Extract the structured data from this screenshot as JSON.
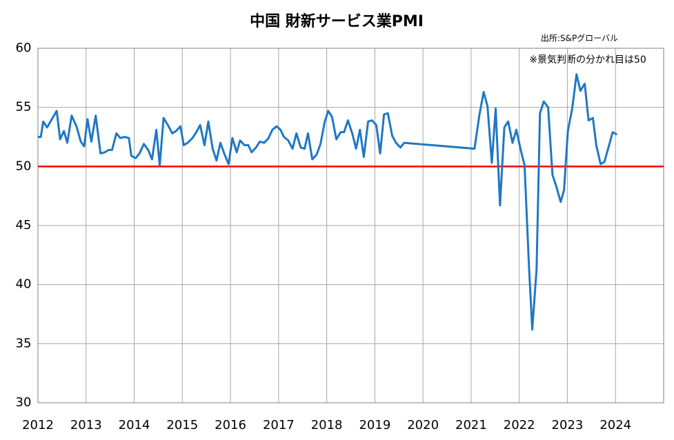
{
  "chart_data": {
    "type": "line",
    "title": "中国  財新サービス業PMI",
    "annotations": [
      "出所:S&Pグローバル",
      "※景気判断の分かれ目は50"
    ],
    "threshold": 50,
    "threshold_color": "#ff0000",
    "xlim": [
      2012,
      2025
    ],
    "xticks": [
      2012,
      2013,
      2014,
      2015,
      2016,
      2017,
      2018,
      2019,
      2020,
      2021,
      2022,
      2023,
      2024
    ],
    "ylim": [
      30,
      60
    ],
    "yticks": [
      30,
      35,
      40,
      45,
      50,
      55,
      60
    ],
    "grid": true,
    "x": [
      2012.0,
      2012.06,
      2012.11,
      2012.19,
      2012.29,
      2012.39,
      2012.46,
      2012.54,
      2012.61,
      2012.7,
      2012.8,
      2012.89,
      2012.96,
      2013.03,
      2013.11,
      2013.2,
      2013.3,
      2013.39,
      2013.47,
      2013.54,
      2013.63,
      2013.71,
      2013.8,
      2013.89,
      2013.94,
      2014.03,
      2014.11,
      2014.2,
      2014.29,
      2014.37,
      2014.46,
      2014.53,
      2014.61,
      2014.7,
      2014.79,
      2014.87,
      2014.96,
      2015.03,
      2015.11,
      2015.21,
      2015.29,
      2015.37,
      2015.46,
      2015.54,
      2015.63,
      2015.71,
      2015.79,
      2015.87,
      2015.96,
      2016.04,
      2016.13,
      2016.2,
      2016.29,
      2016.37,
      2016.44,
      2016.53,
      2016.61,
      2016.7,
      2016.79,
      2016.87,
      2016.96,
      2017.04,
      2017.11,
      2017.2,
      2017.29,
      2017.37,
      2017.46,
      2017.54,
      2017.61,
      2017.7,
      2017.79,
      2017.87,
      2017.96,
      2018.03,
      2018.11,
      2018.2,
      2018.29,
      2018.36,
      2018.44,
      2018.53,
      2018.61,
      2018.69,
      2018.77,
      2018.86,
      2018.94,
      2019.03,
      2019.11,
      2019.19,
      2019.27,
      2019.36,
      2019.44,
      2019.53,
      2019.61,
      2021.07,
      2021.17,
      2021.26,
      2021.34,
      2021.43,
      2021.51,
      2021.6,
      2021.69,
      2021.77,
      2021.86,
      2021.94,
      2022.03,
      2022.11,
      2022.2,
      2022.27,
      2022.36,
      2022.43,
      2022.51,
      2022.6,
      2022.69,
      2022.77,
      2022.86,
      2022.93,
      2023.01,
      2023.1,
      2023.19,
      2023.27,
      2023.36,
      2023.44,
      2023.53,
      2023.6,
      2023.69,
      2023.77,
      2023.86,
      2023.94,
      2024.03
    ],
    "series": [
      {
        "name": "財新サービス業PMI",
        "color": "#1f77c4",
        "values": [
          52.5,
          52.5,
          53.8,
          53.3,
          54.0,
          54.7,
          52.3,
          53.0,
          52.0,
          54.3,
          53.4,
          52.1,
          51.7,
          54.0,
          52.1,
          54.3,
          51.1,
          51.2,
          51.4,
          51.4,
          52.8,
          52.4,
          52.5,
          52.4,
          50.9,
          50.7,
          51.1,
          51.9,
          51.4,
          50.6,
          53.1,
          50.1,
          54.1,
          53.5,
          52.8,
          53.0,
          53.4,
          51.8,
          52.0,
          52.4,
          52.9,
          53.5,
          51.8,
          53.8,
          51.5,
          50.5,
          52.0,
          51.1,
          50.2,
          52.4,
          51.2,
          52.2,
          51.8,
          51.8,
          51.2,
          51.6,
          52.1,
          52.0,
          52.4,
          53.1,
          53.4,
          53.1,
          52.5,
          52.2,
          51.5,
          52.8,
          51.6,
          51.5,
          52.8,
          50.6,
          51.0,
          51.9,
          53.8,
          54.7,
          54.2,
          52.3,
          52.9,
          52.9,
          53.9,
          52.8,
          51.5,
          53.1,
          50.8,
          53.8,
          53.9,
          53.5,
          51.1,
          54.4,
          54.5,
          52.6,
          52.0,
          51.6,
          52.0,
          51.5,
          54.3,
          56.3,
          55.1,
          50.3,
          54.9,
          46.7,
          53.3,
          53.8,
          52.0,
          53.1,
          51.4,
          50.1,
          41.7,
          36.2,
          41.3,
          54.5,
          55.5,
          55.0,
          49.3,
          48.3,
          47.0,
          48.0,
          53.0,
          54.9,
          57.8,
          56.4,
          57.0,
          53.9,
          54.1,
          51.8,
          50.2,
          50.4,
          51.7,
          52.9,
          52.7
        ]
      }
    ]
  }
}
